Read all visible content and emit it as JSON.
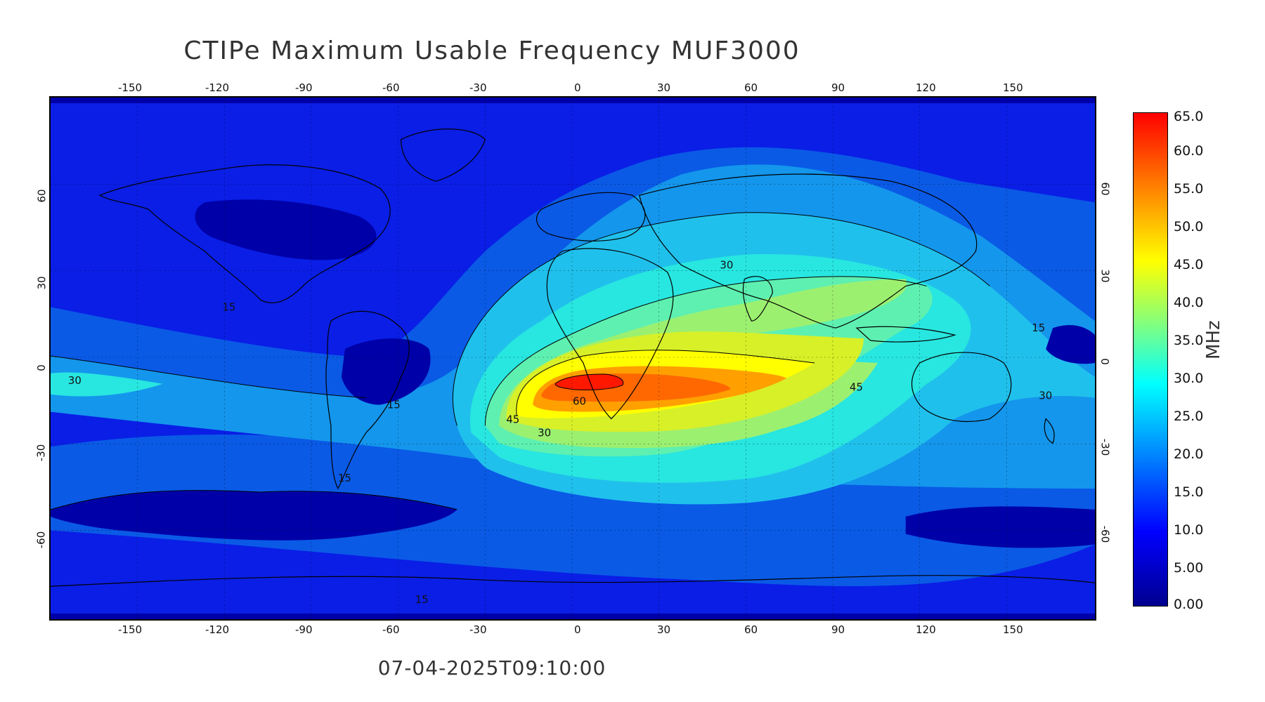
{
  "title": "CTIPe Maximum Usable Frequency MUF3000",
  "timestamp": "07-04-2025T09:10:00",
  "lon_ticks": [
    "-150",
    "-120",
    "-90",
    "-60",
    "-30",
    "0",
    "30",
    "60",
    "90",
    "120",
    "150"
  ],
  "lat_ticks": [
    "60",
    "30",
    "0",
    "-30",
    "-60"
  ],
  "colorbar": {
    "unit": "MHz",
    "labels": [
      "65.0",
      "60.0",
      "55.0",
      "50.0",
      "45.0",
      "40.0",
      "35.0",
      "30.0",
      "25.0",
      "20.0",
      "15.0",
      "10.0",
      "5.00",
      "0.00"
    ]
  },
  "contour_labels": [
    "15",
    "30",
    "45",
    "60",
    "15",
    "15",
    "15",
    "15",
    "30",
    "30",
    "30",
    "45",
    "15",
    "30",
    "15",
    "15",
    "15"
  ],
  "colors": {
    "deep_blue": "#0000a8",
    "blue": "#0a1ee6",
    "mid_blue": "#0a5ae6",
    "light_blue": "#1496ec",
    "cyan_blue": "#20c0ec",
    "cyan": "#28e6e0",
    "aqua_green": "#5ef0b0",
    "green": "#9cf070",
    "yellow_green": "#d8f028",
    "yellow": "#ffff00",
    "orange": "#ffa000",
    "orange_red": "#ff6800",
    "red": "#ff1800"
  }
}
